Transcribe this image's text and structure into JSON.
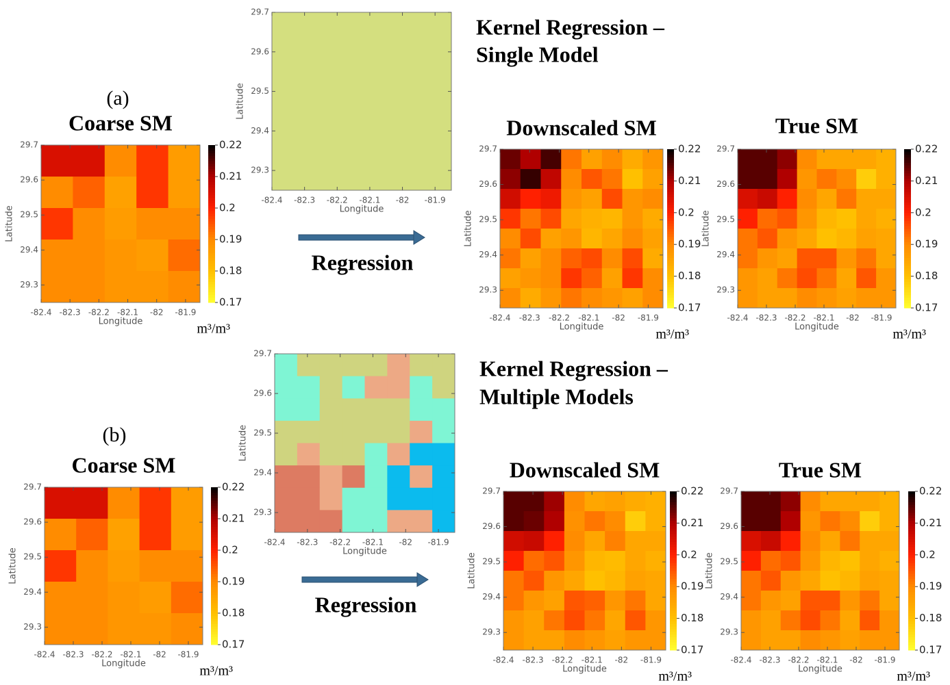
{
  "figure": {
    "panel_a": "(a)",
    "panel_b": "(b)",
    "method_a_1": "Kernel Regression –",
    "method_a_2": "Single Model",
    "method_b_1": "Kernel Regression –",
    "method_b_2": "Multiple Models",
    "arrow_a": "Regression",
    "arrow_b": "Regression"
  },
  "chart_data": [
    {
      "type": "heatmap",
      "title": "Coarse SM",
      "xlabel": "Longitude",
      "ylabel": "Latitude",
      "xlim": [
        -82.4,
        -81.85
      ],
      "ylim": [
        29.25,
        29.7
      ],
      "xticks": [
        -82.4,
        -82.3,
        -82.2,
        -82.1,
        -82,
        -81.9
      ],
      "yticks": [
        29.3,
        29.4,
        29.5,
        29.6,
        29.7
      ],
      "clim": [
        0.17,
        0.22
      ],
      "cticks": [
        0.17,
        0.18,
        0.19,
        0.2,
        0.21,
        0.22
      ],
      "clabel": "m³/m³",
      "colormap": [
        "#ffff30",
        "#ffc000",
        "#ff8c00",
        "#ff2000",
        "#b00000",
        "#000000"
      ],
      "values": [
        [
          0.205,
          0.205,
          0.19,
          0.198,
          0.187
        ],
        [
          0.19,
          0.194,
          0.186,
          0.198,
          0.187
        ],
        [
          0.198,
          0.19,
          0.187,
          0.19,
          0.19
        ],
        [
          0.19,
          0.19,
          0.188,
          0.187,
          0.193
        ],
        [
          0.19,
          0.19,
          0.188,
          0.188,
          0.19
        ]
      ]
    },
    {
      "type": "categorical",
      "xlabel": "Longitude",
      "ylabel": "Latitude",
      "xlim": [
        -82.4,
        -81.85
      ],
      "ylim": [
        29.25,
        29.7
      ],
      "xticks": [
        -82.4,
        -82.3,
        -82.2,
        -82.1,
        -82,
        -81.9
      ],
      "yticks": [
        29.3,
        29.4,
        29.5,
        29.6,
        29.7
      ],
      "colors": [
        "#d4df7f"
      ],
      "values": [
        [
          0
        ]
      ]
    },
    {
      "type": "heatmap",
      "title": "Downscaled SM",
      "xlabel": "Longitude",
      "ylabel": "Latitude",
      "xlim": [
        -82.4,
        -81.85
      ],
      "ylim": [
        29.25,
        29.7
      ],
      "xticks": [
        -82.4,
        -82.3,
        -82.2,
        -82.1,
        -82,
        -81.9
      ],
      "yticks": [
        29.3,
        29.4,
        29.5,
        29.6,
        29.7
      ],
      "clim": [
        0.17,
        0.22
      ],
      "cticks": [
        0.17,
        0.18,
        0.19,
        0.2,
        0.21,
        0.22
      ],
      "clabel": "m³/m³",
      "colormap": [
        "#ffff30",
        "#ffc000",
        "#ff8c00",
        "#ff2000",
        "#b00000",
        "#000000"
      ],
      "values": [
        [
          0.214,
          0.21,
          0.216,
          0.192,
          0.186,
          0.19,
          0.184,
          0.188
        ],
        [
          0.212,
          0.217,
          0.208,
          0.19,
          0.195,
          0.192,
          0.18,
          0.186
        ],
        [
          0.206,
          0.2,
          0.202,
          0.188,
          0.186,
          0.196,
          0.188,
          0.19
        ],
        [
          0.198,
          0.192,
          0.196,
          0.185,
          0.183,
          0.182,
          0.188,
          0.184
        ],
        [
          0.19,
          0.196,
          0.186,
          0.188,
          0.182,
          0.185,
          0.19,
          0.186
        ],
        [
          0.192,
          0.186,
          0.19,
          0.194,
          0.196,
          0.19,
          0.196,
          0.184
        ],
        [
          0.186,
          0.188,
          0.19,
          0.198,
          0.194,
          0.186,
          0.198,
          0.19
        ],
        [
          0.19,
          0.184,
          0.188,
          0.192,
          0.19,
          0.188,
          0.186,
          0.19
        ]
      ]
    },
    {
      "type": "heatmap",
      "title": "True SM",
      "xlabel": "Longitude",
      "ylabel": "Latitude",
      "xlim": [
        -82.4,
        -81.85
      ],
      "ylim": [
        29.25,
        29.7
      ],
      "xticks": [
        -82.4,
        -82.3,
        -82.2,
        -82.1,
        -82,
        -81.9
      ],
      "yticks": [
        29.3,
        29.4,
        29.5,
        29.6,
        29.7
      ],
      "clim": [
        0.17,
        0.22
      ],
      "cticks": [
        0.17,
        0.18,
        0.19,
        0.2,
        0.21,
        0.22
      ],
      "clabel": "m³/m³",
      "colormap": [
        "#ffff30",
        "#ffc000",
        "#ff8c00",
        "#ff2000",
        "#b00000",
        "#000000"
      ],
      "values": [
        [
          0.215,
          0.215,
          0.212,
          0.19,
          0.185,
          0.185,
          0.185,
          0.183
        ],
        [
          0.215,
          0.215,
          0.21,
          0.188,
          0.192,
          0.19,
          0.178,
          0.183
        ],
        [
          0.205,
          0.207,
          0.2,
          0.19,
          0.185,
          0.192,
          0.185,
          0.185
        ],
        [
          0.2,
          0.193,
          0.195,
          0.188,
          0.182,
          0.18,
          0.185,
          0.183
        ],
        [
          0.192,
          0.195,
          0.188,
          0.185,
          0.18,
          0.182,
          0.186,
          0.185
        ],
        [
          0.192,
          0.188,
          0.186,
          0.195,
          0.195,
          0.188,
          0.192,
          0.185
        ],
        [
          0.188,
          0.186,
          0.192,
          0.196,
          0.192,
          0.185,
          0.195,
          0.188
        ],
        [
          0.188,
          0.186,
          0.186,
          0.19,
          0.188,
          0.186,
          0.188,
          0.188
        ]
      ]
    },
    {
      "type": "heatmap",
      "title": "Coarse SM",
      "xlabel": "Longitude",
      "ylabel": "Latitude",
      "xlim": [
        -82.4,
        -81.85
      ],
      "ylim": [
        29.25,
        29.7
      ],
      "xticks": [
        -82.4,
        -82.3,
        -82.2,
        -82.1,
        -82,
        -81.9
      ],
      "yticks": [
        29.3,
        29.4,
        29.5,
        29.6,
        29.7
      ],
      "clim": [
        0.17,
        0.22
      ],
      "cticks": [
        0.17,
        0.18,
        0.19,
        0.2,
        0.21,
        0.22
      ],
      "clabel": "m³/m³",
      "colormap": [
        "#ffff30",
        "#ffc000",
        "#ff8c00",
        "#ff2000",
        "#b00000",
        "#000000"
      ],
      "values": [
        [
          0.205,
          0.205,
          0.19,
          0.198,
          0.187
        ],
        [
          0.19,
          0.194,
          0.186,
          0.198,
          0.187
        ],
        [
          0.198,
          0.19,
          0.187,
          0.19,
          0.19
        ],
        [
          0.19,
          0.19,
          0.188,
          0.187,
          0.193
        ],
        [
          0.19,
          0.19,
          0.188,
          0.188,
          0.19
        ]
      ]
    },
    {
      "type": "categorical",
      "xlabel": "Longitude",
      "ylabel": "Latitude",
      "xlim": [
        -82.4,
        -81.85
      ],
      "ylim": [
        29.25,
        29.7
      ],
      "xticks": [
        -82.4,
        -82.3,
        -82.2,
        -82.1,
        -82,
        -81.9
      ],
      "yticks": [
        29.3,
        29.4,
        29.5,
        29.6,
        29.7
      ],
      "colors": [
        "#cfd47f",
        "#7ff5d4",
        "#eda985",
        "#dd7b62",
        "#0bbbee"
      ],
      "values": [
        [
          1,
          0,
          0,
          0,
          0,
          2,
          0,
          0
        ],
        [
          1,
          1,
          0,
          1,
          2,
          2,
          1,
          0
        ],
        [
          1,
          1,
          0,
          0,
          0,
          0,
          1,
          1
        ],
        [
          0,
          0,
          0,
          0,
          0,
          0,
          2,
          1
        ],
        [
          0,
          2,
          0,
          0,
          1,
          2,
          4,
          4
        ],
        [
          3,
          3,
          2,
          3,
          1,
          4,
          2,
          4
        ],
        [
          3,
          3,
          2,
          1,
          1,
          4,
          4,
          4
        ],
        [
          3,
          3,
          3,
          1,
          1,
          2,
          2,
          4
        ]
      ]
    },
    {
      "type": "heatmap",
      "title": "Downscaled SM",
      "xlabel": "Longitude",
      "ylabel": "Latitude",
      "xlim": [
        -82.4,
        -81.85
      ],
      "ylim": [
        29.25,
        29.7
      ],
      "xticks": [
        -82.4,
        -82.3,
        -82.2,
        -82.1,
        -82,
        -81.9
      ],
      "yticks": [
        29.3,
        29.4,
        29.5,
        29.6,
        29.7
      ],
      "clim": [
        0.17,
        0.22
      ],
      "cticks": [
        0.17,
        0.18,
        0.19,
        0.2,
        0.21,
        0.22
      ],
      "clabel": "m³/m³",
      "colormap": [
        "#ffff30",
        "#ffc000",
        "#ff8c00",
        "#ff2000",
        "#b00000",
        "#000000"
      ],
      "values": [
        [
          0.215,
          0.215,
          0.211,
          0.19,
          0.185,
          0.186,
          0.184,
          0.183
        ],
        [
          0.215,
          0.214,
          0.21,
          0.189,
          0.192,
          0.19,
          0.178,
          0.183
        ],
        [
          0.206,
          0.207,
          0.2,
          0.19,
          0.185,
          0.191,
          0.185,
          0.185
        ],
        [
          0.2,
          0.193,
          0.195,
          0.188,
          0.182,
          0.181,
          0.185,
          0.183
        ],
        [
          0.192,
          0.195,
          0.188,
          0.185,
          0.18,
          0.182,
          0.186,
          0.185
        ],
        [
          0.192,
          0.188,
          0.186,
          0.195,
          0.194,
          0.188,
          0.192,
          0.185
        ],
        [
          0.188,
          0.186,
          0.192,
          0.196,
          0.192,
          0.185,
          0.195,
          0.188
        ],
        [
          0.188,
          0.186,
          0.186,
          0.19,
          0.188,
          0.186,
          0.188,
          0.188
        ]
      ]
    },
    {
      "type": "heatmap",
      "title": "True SM",
      "xlabel": "Longitude",
      "ylabel": "Latitude",
      "xlim": [
        -82.4,
        -81.85
      ],
      "ylim": [
        29.25,
        29.7
      ],
      "xticks": [
        -82.4,
        -82.3,
        -82.2,
        -82.1,
        -82,
        -81.9
      ],
      "yticks": [
        29.3,
        29.4,
        29.5,
        29.6,
        29.7
      ],
      "clim": [
        0.17,
        0.22
      ],
      "cticks": [
        0.17,
        0.18,
        0.19,
        0.2,
        0.21,
        0.22
      ],
      "clabel": "m³/m³",
      "colormap": [
        "#ffff30",
        "#ffc000",
        "#ff8c00",
        "#ff2000",
        "#b00000",
        "#000000"
      ],
      "values": [
        [
          0.215,
          0.215,
          0.212,
          0.19,
          0.185,
          0.185,
          0.185,
          0.183
        ],
        [
          0.215,
          0.215,
          0.21,
          0.188,
          0.192,
          0.19,
          0.178,
          0.183
        ],
        [
          0.205,
          0.207,
          0.2,
          0.19,
          0.185,
          0.192,
          0.185,
          0.185
        ],
        [
          0.2,
          0.193,
          0.195,
          0.188,
          0.182,
          0.18,
          0.185,
          0.183
        ],
        [
          0.192,
          0.195,
          0.188,
          0.185,
          0.18,
          0.182,
          0.186,
          0.185
        ],
        [
          0.192,
          0.188,
          0.186,
          0.195,
          0.195,
          0.188,
          0.192,
          0.185
        ],
        [
          0.188,
          0.186,
          0.192,
          0.196,
          0.192,
          0.185,
          0.195,
          0.188
        ],
        [
          0.188,
          0.186,
          0.186,
          0.19,
          0.188,
          0.186,
          0.188,
          0.188
        ]
      ]
    }
  ]
}
